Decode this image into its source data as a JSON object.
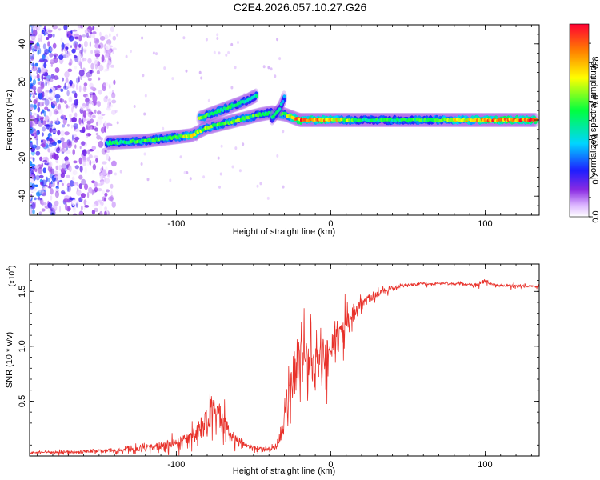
{
  "title": "C2E4.2026.057.10.27.G26",
  "chart_data": [
    {
      "type": "heatmap",
      "name": "spectrogram",
      "xlabel": "Height of straight line (km)",
      "ylabel": "Frequency (Hz)",
      "xlim": [
        -195,
        135
      ],
      "ylim": [
        -50,
        50
      ],
      "xticks": [
        -100,
        0,
        100
      ],
      "xtick_labels": [
        "-100",
        "0",
        "100"
      ],
      "yticks": [
        -40,
        -20,
        0,
        20,
        40
      ],
      "ytick_labels": [
        "-40",
        "-20",
        "0",
        "20",
        "40"
      ],
      "colorbar": {
        "label": "Normalized spectral amplitude",
        "range": [
          0,
          1
        ],
        "ticks": [
          0.0,
          0.2,
          0.4,
          0.6,
          0.8
        ],
        "tick_labels": [
          "0.0",
          "0.2",
          "0.4",
          "0.6",
          "0.8"
        ]
      },
      "ridges": [
        {
          "name": "main-track",
          "x": [
            -145,
            -120,
            -100,
            -90,
            -80,
            -60,
            -45,
            -38,
            -30,
            -20,
            -10,
            0,
            20,
            60,
            100,
            133
          ],
          "y": [
            -12,
            -11,
            -9,
            -8,
            -4,
            0,
            3,
            4,
            3,
            0,
            0,
            0,
            0,
            0,
            0,
            0
          ],
          "amplitude": [
            0.5,
            0.55,
            0.6,
            0.75,
            0.6,
            0.6,
            0.55,
            0.5,
            0.6,
            0.9,
            0.85,
            0.8,
            0.5,
            0.55,
            0.85,
            0.95
          ]
        },
        {
          "name": "upper-branch",
          "x": [
            -85,
            -75,
            -65,
            -55,
            -48
          ],
          "y": [
            1,
            4,
            7,
            10,
            13
          ],
          "amplitude": [
            0.6,
            0.5,
            0.55,
            0.5,
            0.45
          ]
        },
        {
          "name": "right-branch",
          "x": [
            -38,
            -33,
            -30
          ],
          "y": [
            1,
            6,
            12
          ],
          "amplitude": [
            0.5,
            0.45,
            0.4
          ]
        }
      ],
      "noise_region": {
        "x": [
          -195,
          -140
        ],
        "y": [
          -50,
          50
        ],
        "amplitude_max": 0.35
      }
    },
    {
      "type": "line",
      "name": "snr",
      "xlabel": "Height of straight line (km)",
      "ylabel": "SNR (10 * v/v)",
      "y_multiplier": "(x10^4)",
      "y_multiplier_base": "(x10",
      "y_multiplier_exp": "4",
      "y_multiplier_close": ")",
      "color": "#e8312a",
      "xlim": [
        -195,
        135
      ],
      "ylim": [
        0,
        1.75
      ],
      "xticks": [
        -100,
        0,
        100
      ],
      "xtick_labels": [
        "-100",
        "0",
        "100"
      ],
      "yticks": [
        0.5,
        1.0,
        1.5
      ],
      "ytick_labels": [
        "0.5",
        "1.0",
        "1.5"
      ],
      "envelope": {
        "x": [
          -195,
          -160,
          -130,
          -110,
          -95,
          -88,
          -82,
          -78,
          -75,
          -72,
          -68,
          -64,
          -60,
          -55,
          -48,
          -40,
          -35,
          -32,
          -28,
          -25,
          -22,
          -20,
          -15,
          -10,
          -5,
          0,
          5,
          10,
          15,
          20,
          30,
          40,
          50,
          60,
          80,
          95,
          100,
          105,
          120,
          135
        ],
        "y": [
          0.03,
          0.04,
          0.06,
          0.09,
          0.14,
          0.2,
          0.3,
          0.4,
          0.48,
          0.38,
          0.26,
          0.2,
          0.15,
          0.1,
          0.07,
          0.06,
          0.1,
          0.22,
          0.5,
          0.75,
          0.85,
          0.88,
          0.9,
          0.85,
          0.9,
          0.97,
          1.1,
          1.22,
          1.32,
          1.4,
          1.48,
          1.54,
          1.56,
          1.57,
          1.57,
          1.56,
          1.6,
          1.56,
          1.55,
          1.55
        ],
        "noise": [
          0.02,
          0.03,
          0.05,
          0.08,
          0.12,
          0.18,
          0.28,
          0.35,
          0.33,
          0.3,
          0.22,
          0.15,
          0.1,
          0.06,
          0.04,
          0.03,
          0.1,
          0.25,
          0.45,
          0.55,
          0.6,
          0.6,
          0.5,
          0.45,
          0.4,
          0.35,
          0.3,
          0.25,
          0.2,
          0.15,
          0.08,
          0.05,
          0.03,
          0.025,
          0.025,
          0.03,
          0.06,
          0.03,
          0.025,
          0.025
        ]
      }
    }
  ]
}
